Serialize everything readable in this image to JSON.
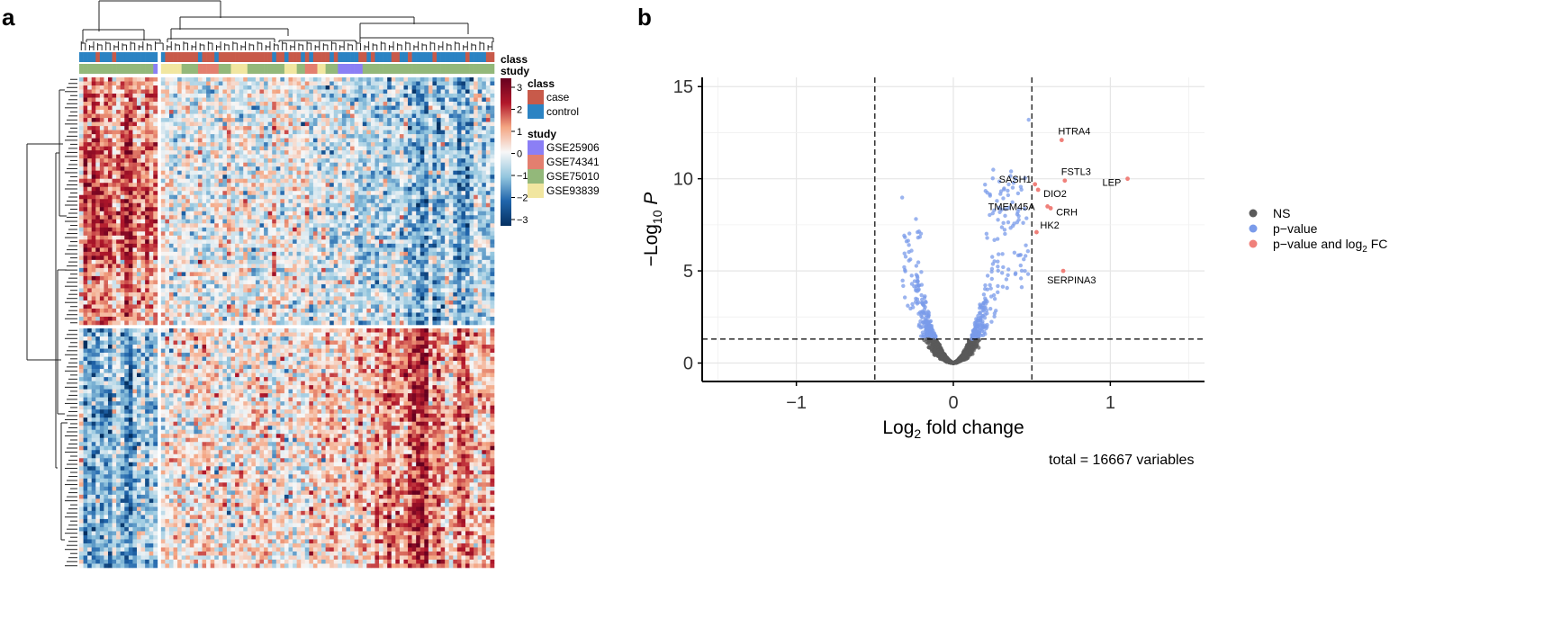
{
  "panel_a": {
    "letter": "a",
    "annotation_labels": {
      "class": "class",
      "study": "study"
    },
    "colorbar": {
      "ticks": [
        "3",
        "2",
        "1",
        "0",
        "−1",
        "−2",
        "−3"
      ],
      "colors": {
        "high": "#8b1a1a",
        "mid": "#f7f7f7",
        "low": "#08306b"
      }
    },
    "legend": {
      "class_title": "class",
      "class_items": [
        {
          "label": "case",
          "color": "#c85a4a"
        },
        {
          "label": "control",
          "color": "#2b83c3"
        }
      ],
      "study_title": "study",
      "study_items": [
        {
          "label": "GSE25906",
          "color": "#8b7ff5"
        },
        {
          "label": "GSE74341",
          "color": "#e37f6f"
        },
        {
          "label": "GSE75010",
          "color": "#93b87a"
        },
        {
          "label": "GSE93839",
          "color": "#f1e6a0"
        }
      ]
    }
  },
  "panel_b": {
    "letter": "b",
    "footer": "total = 16667 variables"
  },
  "chart_data": {
    "type": "scatter",
    "xlabel": "Log2 fold change",
    "ylabel": "−Log10 P",
    "xlim": [
      -1.6,
      1.6
    ],
    "ylim": [
      -1,
      15.5
    ],
    "xticks": [
      "−1",
      "0",
      "1"
    ],
    "yticks": [
      "0",
      "5",
      "10",
      "15"
    ],
    "grid": true,
    "fc_cutoff": [
      -0.5,
      0.5
    ],
    "p_cutoff": 1.3,
    "legend_position": "right",
    "legend": [
      {
        "label": "NS",
        "color": "#5a5a5a"
      },
      {
        "label": "p−value",
        "color": "#7a9bea"
      },
      {
        "label": "p−value and log2 FC",
        "color": "#f0807a"
      }
    ],
    "labeled_points": [
      {
        "gene": "HTRA4",
        "x": 0.69,
        "y": 12.1
      },
      {
        "gene": "FSTL3",
        "x": 0.71,
        "y": 9.9
      },
      {
        "gene": "LEP",
        "x": 1.11,
        "y": 10.0
      },
      {
        "gene": "SASH1",
        "x": 0.52,
        "y": 9.7
      },
      {
        "gene": "DIO2",
        "x": 0.54,
        "y": 9.4
      },
      {
        "gene": "TMEM45A",
        "x": 0.6,
        "y": 8.5
      },
      {
        "gene": "CRH",
        "x": 0.62,
        "y": 8.4
      },
      {
        "gene": "HK2",
        "x": 0.53,
        "y": 7.1
      },
      {
        "gene": "SERPINA3",
        "x": 0.7,
        "y": 5.0
      }
    ]
  }
}
